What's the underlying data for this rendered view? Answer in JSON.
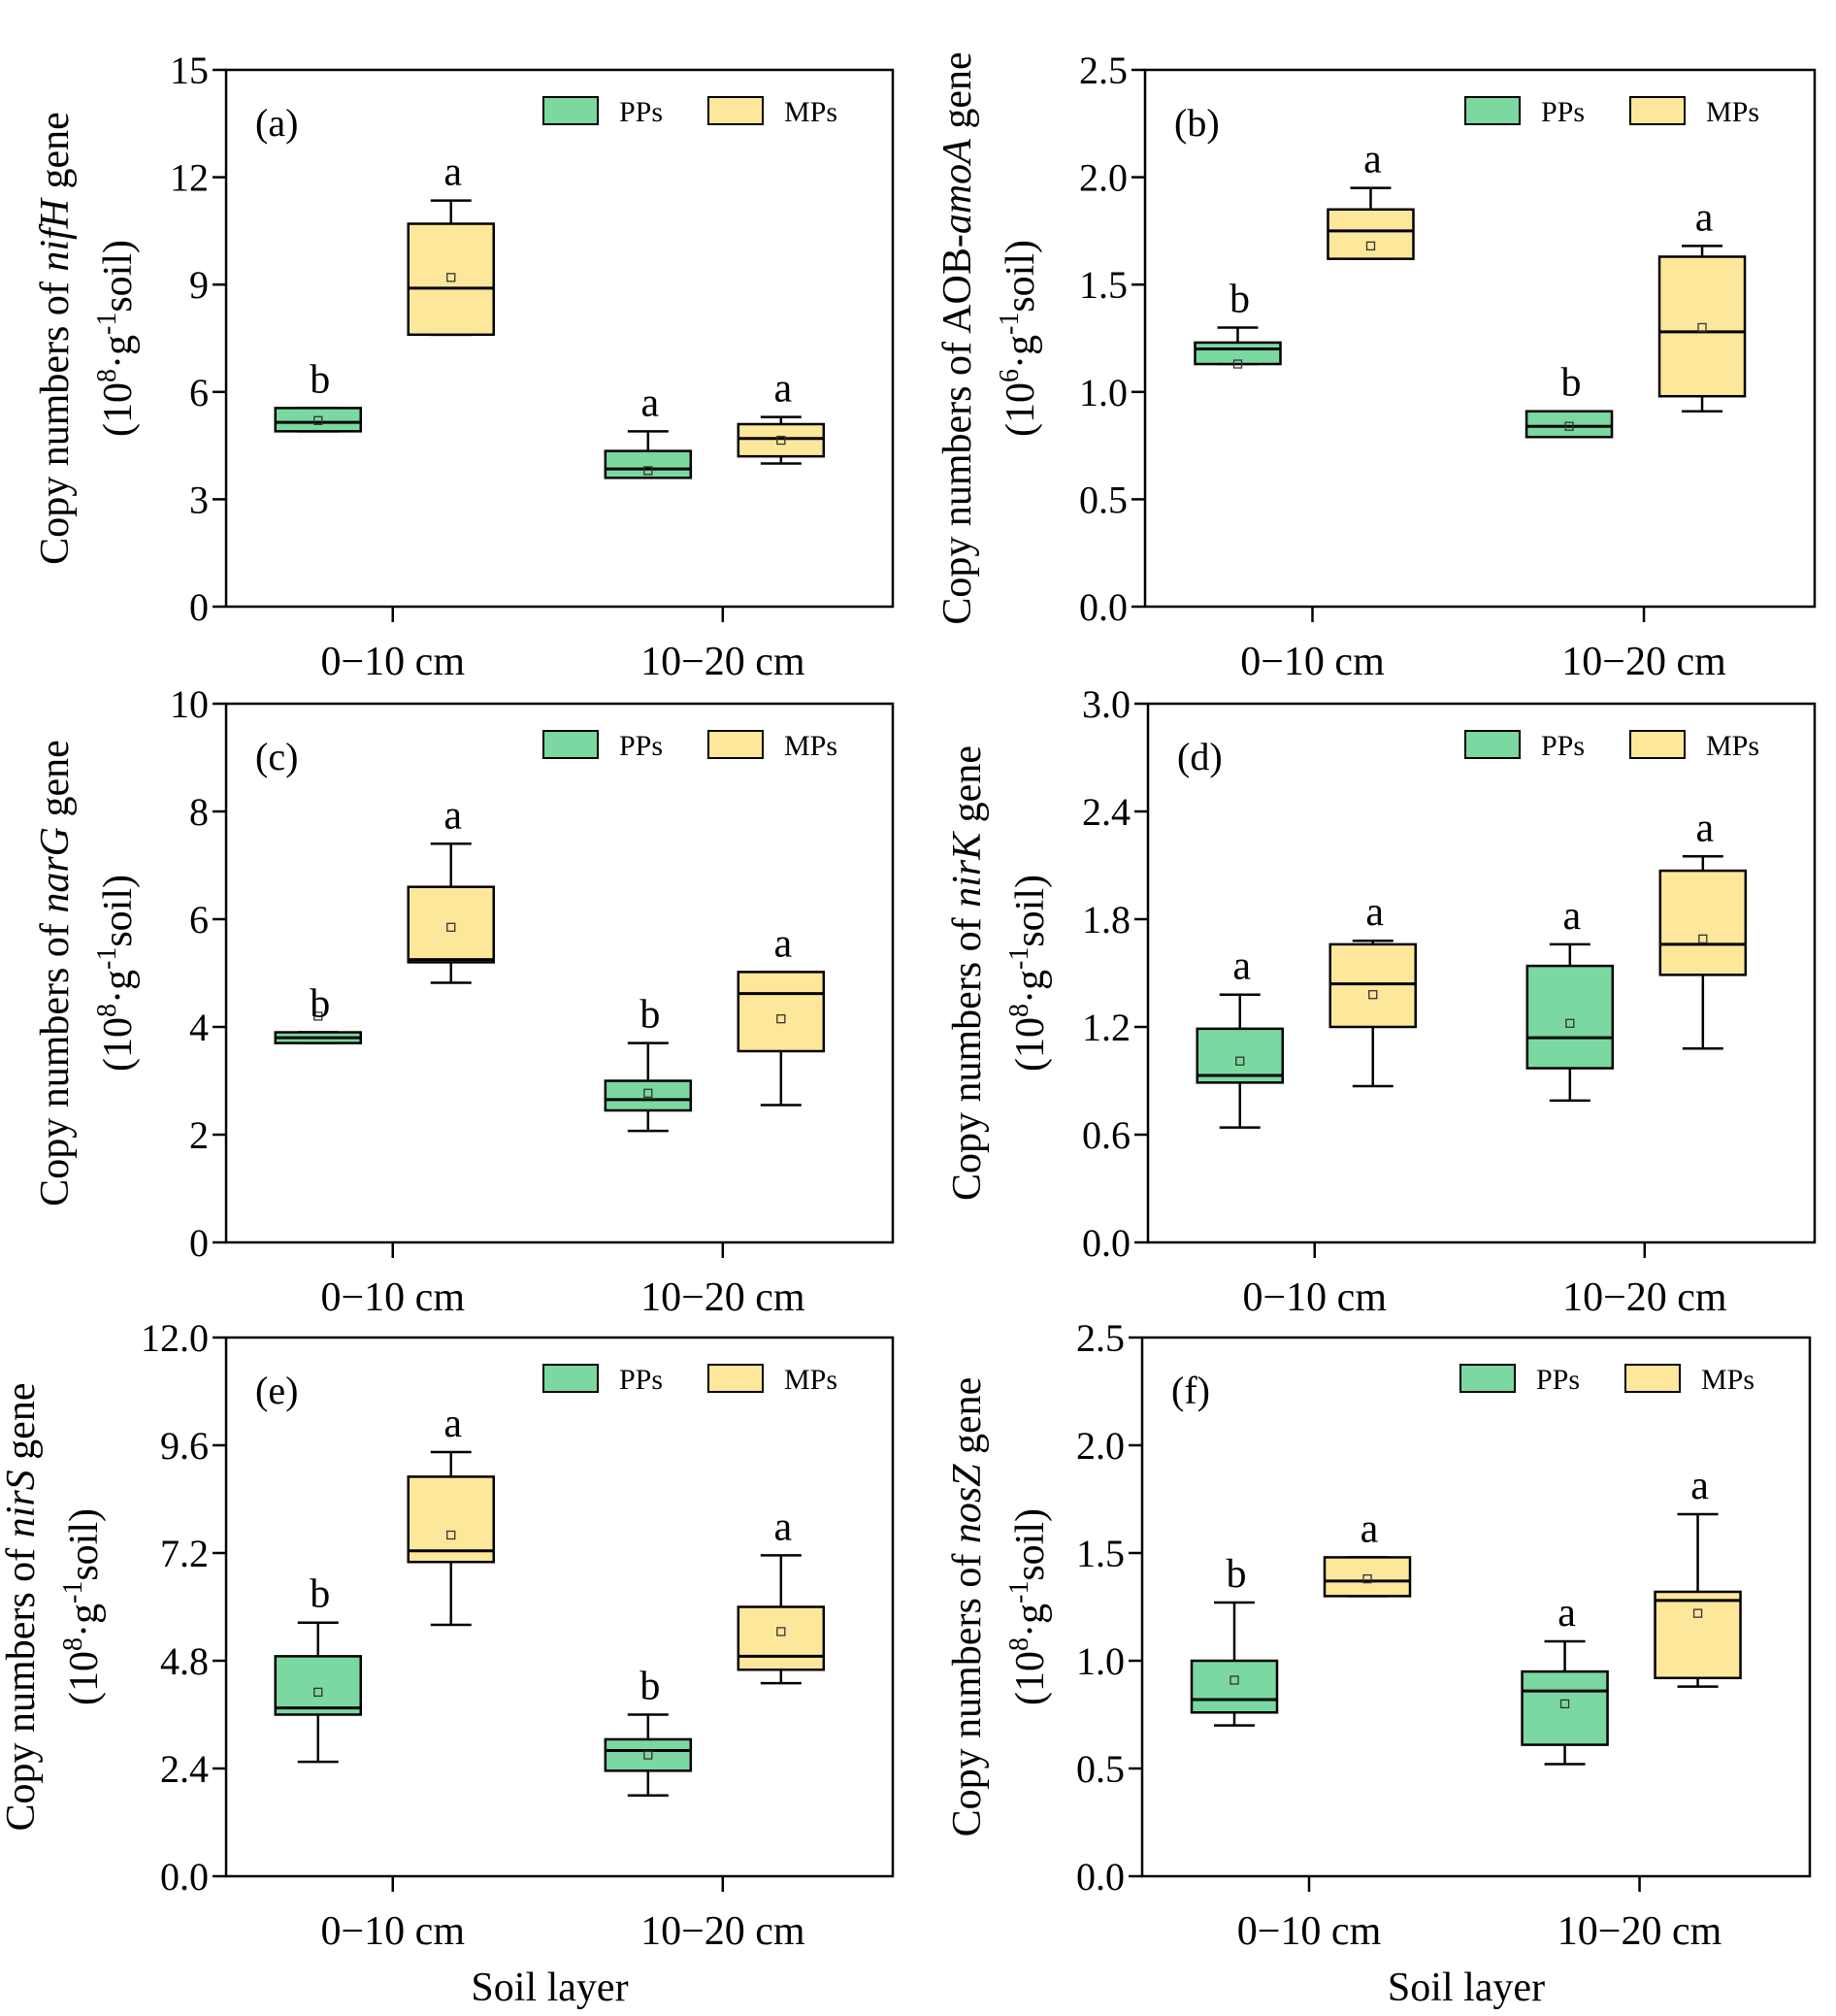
{
  "colors": {
    "PPs": "#7ad8a0",
    "MPs": "#fde79a",
    "stroke": "#000000"
  },
  "legend": [
    {
      "key": "PPs",
      "label": "PPs"
    },
    {
      "key": "MPs",
      "label": "MPs"
    }
  ],
  "x_axis_title": "Soil layer",
  "chart_data": [
    {
      "type": "box",
      "panel": "(a)",
      "ylabel_prefix": "Copy numbers of ",
      "ylabel_gene": "nifH",
      "ylabel_suffix": " gene",
      "ylabel_unit_exp": "8",
      "ylim": [
        0,
        15
      ],
      "yticks": [
        0,
        3,
        6,
        9,
        12,
        15
      ],
      "ytick_labels": [
        "0",
        "3",
        "6",
        "9",
        "12",
        "15"
      ],
      "categories": [
        "0−10 cm",
        "10−20 cm"
      ],
      "xlabel": "",
      "series": [
        {
          "name": "PPs",
          "boxes": [
            {
              "min": 4.9,
              "q1": 4.9,
              "median": 5.15,
              "q3": 5.55,
              "max": 5.55,
              "mean": 5.2,
              "sig": "b"
            },
            {
              "min": 3.6,
              "q1": 3.6,
              "median": 3.85,
              "q3": 4.35,
              "max": 4.9,
              "mean": 3.8,
              "sig": "a"
            }
          ]
        },
        {
          "name": "MPs",
          "boxes": [
            {
              "min": 7.6,
              "q1": 7.6,
              "median": 8.9,
              "q3": 10.7,
              "max": 11.35,
              "mean": 9.2,
              "sig": "a"
            },
            {
              "min": 4.0,
              "q1": 4.2,
              "median": 4.7,
              "q3": 5.1,
              "max": 5.3,
              "mean": 4.65,
              "sig": "a"
            }
          ]
        }
      ]
    },
    {
      "type": "box",
      "panel": "(b)",
      "ylabel_prefix": "Copy numbers of AOB-",
      "ylabel_gene": "amoA",
      "ylabel_suffix": " gene",
      "ylabel_unit_exp": "6",
      "ylim": [
        0,
        2.5
      ],
      "yticks": [
        0,
        0.5,
        1.0,
        1.5,
        2.0,
        2.5
      ],
      "ytick_labels": [
        "0.0",
        "0.5",
        "1.0",
        "1.5",
        "2.0",
        "2.5"
      ],
      "categories": [
        "0−10 cm",
        "10−20 cm"
      ],
      "xlabel": "",
      "series": [
        {
          "name": "PPs",
          "boxes": [
            {
              "min": 1.13,
              "q1": 1.13,
              "median": 1.2,
              "q3": 1.23,
              "max": 1.3,
              "mean": 1.13,
              "sig": "b"
            },
            {
              "min": 0.79,
              "q1": 0.79,
              "median": 0.84,
              "q3": 0.91,
              "max": 0.91,
              "mean": 0.84,
              "sig": "b"
            }
          ]
        },
        {
          "name": "MPs",
          "boxes": [
            {
              "min": 1.62,
              "q1": 1.62,
              "median": 1.75,
              "q3": 1.85,
              "max": 1.95,
              "mean": 1.68,
              "sig": "a"
            },
            {
              "min": 0.91,
              "q1": 0.98,
              "median": 1.28,
              "q3": 1.63,
              "max": 1.68,
              "mean": 1.3,
              "sig": "a"
            }
          ]
        }
      ]
    },
    {
      "type": "box",
      "panel": "(c)",
      "ylabel_prefix": "Copy numbers of ",
      "ylabel_gene": "narG",
      "ylabel_suffix": " gene",
      "ylabel_unit_exp": "8",
      "ylim": [
        0,
        10
      ],
      "yticks": [
        0,
        2,
        4,
        6,
        8,
        10
      ],
      "ytick_labels": [
        "0",
        "2",
        "4",
        "6",
        "8",
        "10"
      ],
      "categories": [
        "0−10 cm",
        "10−20 cm"
      ],
      "xlabel": "",
      "series": [
        {
          "name": "PPs",
          "boxes": [
            {
              "min": 3.7,
              "q1": 3.7,
              "median": 3.8,
              "q3": 3.9,
              "max": 3.9,
              "mean": 4.2,
              "sig": "b"
            },
            {
              "min": 2.07,
              "q1": 2.45,
              "median": 2.65,
              "q3": 3.0,
              "max": 3.7,
              "mean": 2.77,
              "sig": "b"
            }
          ]
        },
        {
          "name": "MPs",
          "boxes": [
            {
              "min": 4.82,
              "q1": 5.2,
              "median": 5.25,
              "q3": 6.6,
              "max": 7.4,
              "mean": 5.85,
              "sig": "a"
            },
            {
              "min": 2.55,
              "q1": 3.55,
              "median": 4.62,
              "q3": 5.02,
              "max": 5.02,
              "mean": 4.15,
              "sig": "a"
            }
          ]
        }
      ]
    },
    {
      "type": "box",
      "panel": "(d)",
      "ylabel_prefix": "Copy numbers of ",
      "ylabel_gene": "nirK",
      "ylabel_suffix": " gene",
      "ylabel_unit_exp": "8",
      "ylim": [
        0,
        3.0
      ],
      "yticks": [
        0,
        0.6,
        1.2,
        1.8,
        2.4,
        3.0
      ],
      "ytick_labels": [
        "0.0",
        "0.6",
        "1.2",
        "1.8",
        "2.4",
        "3.0"
      ],
      "categories": [
        "0−10 cm",
        "10−20 cm"
      ],
      "xlabel": "",
      "series": [
        {
          "name": "PPs",
          "boxes": [
            {
              "min": 0.64,
              "q1": 0.89,
              "median": 0.93,
              "q3": 1.19,
              "max": 1.38,
              "mean": 1.01,
              "sig": "a"
            },
            {
              "min": 0.79,
              "q1": 0.97,
              "median": 1.14,
              "q3": 1.54,
              "max": 1.66,
              "mean": 1.22,
              "sig": "a"
            }
          ]
        },
        {
          "name": "MPs",
          "boxes": [
            {
              "min": 0.87,
              "q1": 1.2,
              "median": 1.44,
              "q3": 1.66,
              "max": 1.68,
              "mean": 1.38,
              "sig": "a"
            },
            {
              "min": 1.08,
              "q1": 1.49,
              "median": 1.66,
              "q3": 2.07,
              "max": 2.15,
              "mean": 1.69,
              "sig": "a"
            }
          ]
        }
      ]
    },
    {
      "type": "box",
      "panel": "(e)",
      "ylabel_prefix": "Copy numbers of ",
      "ylabel_gene": "nirS",
      "ylabel_suffix": " gene",
      "ylabel_unit_exp": "8",
      "ylim": [
        0,
        12.0
      ],
      "yticks": [
        0,
        2.4,
        4.8,
        7.2,
        9.6,
        12.0
      ],
      "ytick_labels": [
        "0.0",
        "2.4",
        "4.8",
        "7.2",
        "9.6",
        "12.0"
      ],
      "categories": [
        "0−10 cm",
        "10−20 cm"
      ],
      "xlabel": "Soil layer",
      "series": [
        {
          "name": "PPs",
          "boxes": [
            {
              "min": 2.55,
              "q1": 3.6,
              "median": 3.75,
              "q3": 4.9,
              "max": 5.65,
              "mean": 4.1,
              "sig": "b"
            },
            {
              "min": 1.8,
              "q1": 2.35,
              "median": 2.8,
              "q3": 3.05,
              "max": 3.6,
              "mean": 2.7,
              "sig": "b"
            }
          ]
        },
        {
          "name": "MPs",
          "boxes": [
            {
              "min": 5.6,
              "q1": 7.0,
              "median": 7.25,
              "q3": 8.9,
              "max": 9.45,
              "mean": 7.6,
              "sig": "a"
            },
            {
              "min": 4.3,
              "q1": 4.6,
              "median": 4.9,
              "q3": 6.0,
              "max": 7.15,
              "mean": 5.45,
              "sig": "a"
            }
          ]
        }
      ]
    },
    {
      "type": "box",
      "panel": "(f)",
      "ylabel_prefix": "Copy numbers of ",
      "ylabel_gene": "nosZ",
      "ylabel_suffix": " gene",
      "ylabel_unit_exp": "8",
      "ylim": [
        0,
        2.5
      ],
      "yticks": [
        0,
        0.5,
        1.0,
        1.5,
        2.0,
        2.5
      ],
      "ytick_labels": [
        "0.0",
        "0.5",
        "1.0",
        "1.5",
        "2.0",
        "2.5"
      ],
      "categories": [
        "0−10 cm",
        "10−20 cm"
      ],
      "xlabel": "Soil layer",
      "series": [
        {
          "name": "PPs",
          "boxes": [
            {
              "min": 0.7,
              "q1": 0.76,
              "median": 0.82,
              "q3": 1.0,
              "max": 1.27,
              "mean": 0.91,
              "sig": "b"
            },
            {
              "min": 0.52,
              "q1": 0.61,
              "median": 0.86,
              "q3": 0.95,
              "max": 1.09,
              "mean": 0.8,
              "sig": "a"
            }
          ]
        },
        {
          "name": "MPs",
          "boxes": [
            {
              "min": 1.3,
              "q1": 1.3,
              "median": 1.37,
              "q3": 1.48,
              "max": 1.48,
              "mean": 1.38,
              "sig": "a"
            },
            {
              "min": 0.88,
              "q1": 0.92,
              "median": 1.28,
              "q3": 1.32,
              "max": 1.68,
              "mean": 1.22,
              "sig": "a"
            }
          ]
        }
      ]
    }
  ]
}
